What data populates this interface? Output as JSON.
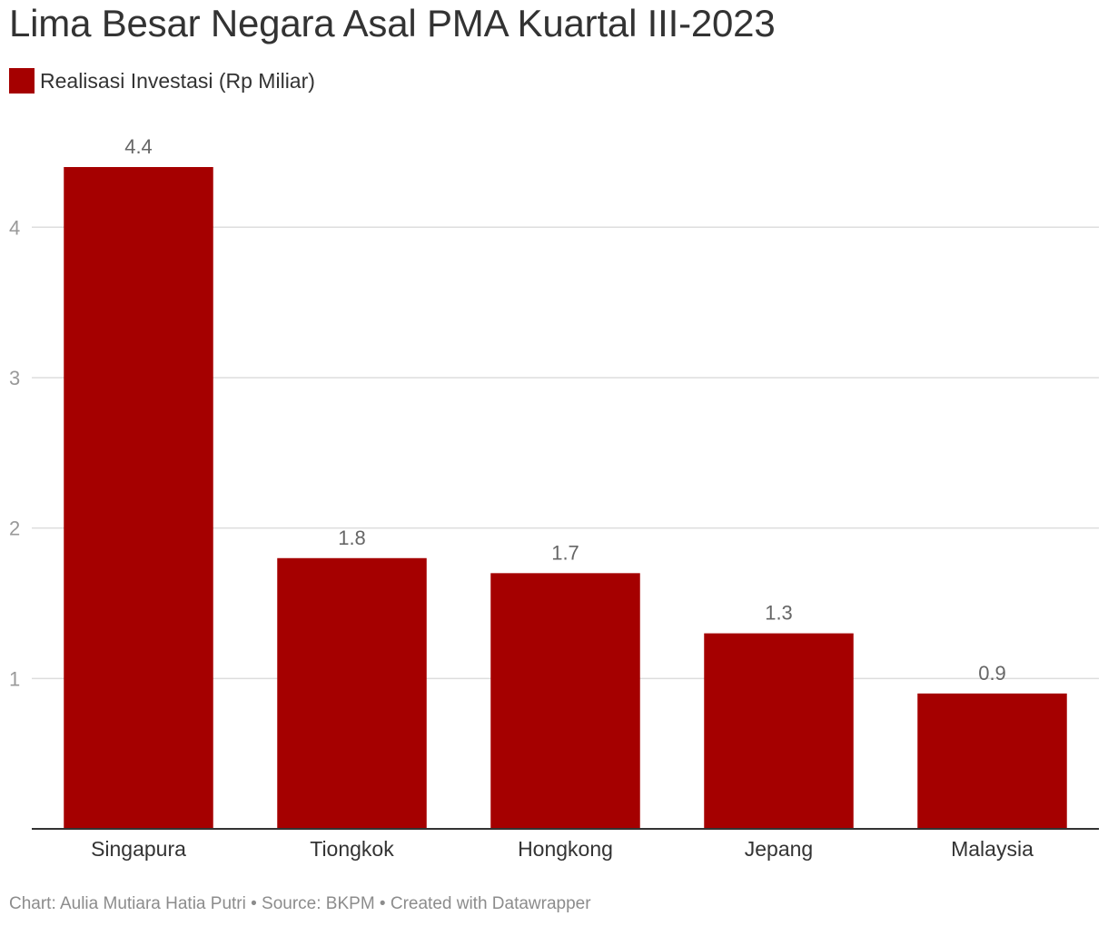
{
  "header": {
    "title": "Lima Besar Negara Asal PMA Kuartal III-2023"
  },
  "legend": {
    "label": "Realisasi Investasi (Rp Miliar)",
    "color": "#a50000"
  },
  "footer": {
    "text": "Chart: Aulia Mutiara Hatia Putri • Source: BKPM • Created with Datawrapper"
  },
  "colors": {
    "bar": "#a50000",
    "grid": "#dddddd",
    "axis": "#333333",
    "tick_label": "#999999",
    "value_label": "#666666",
    "category_label": "#333333"
  },
  "chart_data": {
    "type": "bar",
    "title": "Lima Besar Negara Asal PMA Kuartal III-2023",
    "xlabel": "",
    "ylabel": "",
    "categories": [
      "Singapura",
      "Tiongkok",
      "Hongkong",
      "Jepang",
      "Malaysia"
    ],
    "series": [
      {
        "name": "Realisasi Investasi (Rp Miliar)",
        "values": [
          4.4,
          1.8,
          1.7,
          1.3,
          0.9
        ]
      }
    ],
    "value_labels": [
      "4.4",
      "1.8",
      "1.7",
      "1.3",
      "0.9"
    ],
    "yticks": [
      1,
      2,
      3,
      4
    ],
    "ytick_labels": [
      "1",
      "2",
      "3",
      "4"
    ],
    "ylim": [
      0,
      4.4
    ],
    "grid": true,
    "legend_position": "top-left"
  }
}
